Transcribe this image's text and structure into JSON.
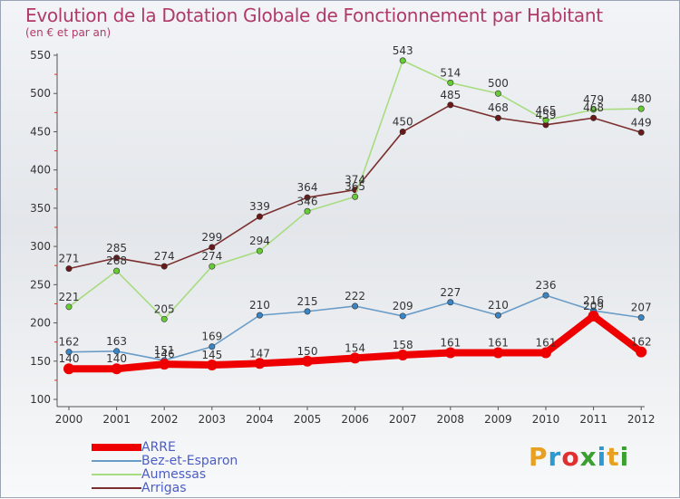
{
  "title": "Evolution de la Dotation Globale de Fonctionnement par Habitant",
  "subtitle": "(en € et par an)",
  "colors": {
    "title": "#b03a6a",
    "axis_text": "#333333",
    "label_text": "#333333"
  },
  "logo": {
    "text": "Proxiti",
    "letters": [
      "P",
      "r",
      "o",
      "x",
      "i",
      "t",
      "i"
    ],
    "colors": [
      "#e8a020",
      "#2a9ad0",
      "#e03030",
      "#3aa030",
      "#2a9ad0",
      "#e8a020",
      "#3aa030"
    ]
  },
  "chart_data": {
    "type": "line",
    "title": "Evolution de la Dotation Globale de Fonctionnement par Habitant",
    "subtitle": "(en € et par an)",
    "x": [
      "2000",
      "2001",
      "2002",
      "2003",
      "2004",
      "2005",
      "2006",
      "2007",
      "2008",
      "2009",
      "2010",
      "2011",
      "2012"
    ],
    "ylim": [
      100,
      550
    ],
    "yticks": [
      100,
      150,
      200,
      250,
      300,
      350,
      400,
      450,
      500,
      550
    ],
    "grid": false,
    "legend_position": "bottom-left",
    "series": [
      {
        "name": "ARRE",
        "color": "#ee0000",
        "thick": true,
        "values": [
          140,
          140,
          146,
          145,
          147,
          150,
          154,
          158,
          161,
          161,
          161,
          209,
          162
        ]
      },
      {
        "name": "Bez-et-Esparon",
        "color": "#6a9cc8",
        "marker": "#3a85c5",
        "values": [
          162,
          163,
          151,
          169,
          210,
          215,
          222,
          209,
          227,
          210,
          236,
          216,
          207
        ]
      },
      {
        "name": "Aumessas",
        "color": "#a8dc80",
        "marker": "#66cc33",
        "values": [
          221,
          268,
          205,
          274,
          294,
          346,
          365,
          543,
          514,
          500,
          465,
          479,
          480
        ]
      },
      {
        "name": "Arrigas",
        "color": "#7b2f2f",
        "marker": "#6b1818",
        "values": [
          271,
          285,
          274,
          299,
          339,
          364,
          374,
          450,
          485,
          468,
          459,
          468,
          449
        ]
      }
    ],
    "point_labels": {
      "ARRE": [
        "140",
        "140",
        "146",
        "145",
        "147",
        "150",
        "154",
        "158",
        "161",
        "161",
        "161",
        "209",
        "162"
      ],
      "Bez-et-Esparon": [
        "162",
        "163",
        "151",
        "169",
        "210",
        "215",
        "222",
        "209",
        "227",
        "210",
        "236",
        "216",
        "207"
      ],
      "Aumessas": [
        "221",
        "268",
        "205",
        "274",
        "294",
        "346",
        "365",
        "543",
        "514",
        "500",
        "465",
        "479",
        "480"
      ],
      "Arrigas": [
        "271",
        "285",
        "274",
        "299",
        "339",
        "364",
        "374",
        "450",
        "485",
        "468",
        "459",
        "468",
        "449"
      ]
    }
  }
}
